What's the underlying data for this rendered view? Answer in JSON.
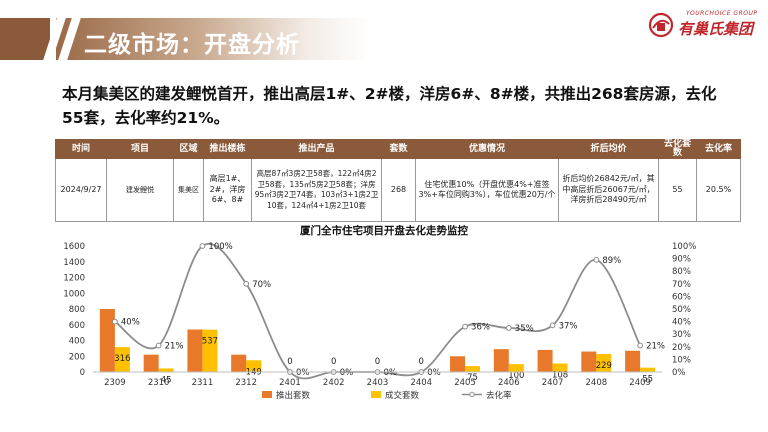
{
  "header": {
    "title": "二级市场：开盘分析",
    "logo_en": "YOURCHOICE GROUP",
    "logo_cn": "有巢氏集团"
  },
  "headline": "本月集美区的建发鲤悦首开，推出高层1#、2#楼，洋房6#、8#楼，共推出268套房源，去化55套，去化率约21%。",
  "table": {
    "headers": [
      "时间",
      "项目",
      "区域",
      "推出楼栋",
      "推出产品",
      "套数",
      "优惠情况",
      "折后均价",
      "去化套数",
      "去化率"
    ],
    "row": {
      "time": "2024/9/27",
      "project": "建发鲤悦",
      "area": "集美区",
      "buildings": "高层1#、2#，洋房6#、8#",
      "products": "高层87㎡3房2卫58套，122㎡4房2卫58套，135㎡5房2卫58套；洋房95㎡3房2卫74套，103㎡3+1房2卫10套，124㎡4+1房2卫10套",
      "units": "268",
      "discount": "住宅优惠10%（开盘优惠4%+准签3%+车位同购3%），车位优惠20万/个",
      "price": "折后均价26842元/㎡，其中高层折后26067元/㎡，洋房折后28490元/㎡",
      "sold": "55",
      "rate": "20.5%"
    }
  },
  "chart_data": {
    "type": "bar",
    "title": "厦门全市住宅项目开盘去化走势监控",
    "categories": [
      "2309",
      "2310",
      "2311",
      "2312",
      "2401",
      "2402",
      "2403",
      "2404",
      "2405",
      "2406",
      "2407",
      "2408",
      "2409"
    ],
    "series": [
      {
        "name": "推出套数",
        "type": "bar",
        "axis": "left",
        "color": "#e8792b",
        "values": [
          800,
          220,
          540,
          220,
          0,
          0,
          0,
          0,
          200,
          290,
          280,
          260,
          270
        ]
      },
      {
        "name": "成交套数",
        "type": "bar",
        "axis": "left",
        "color": "#ffc000",
        "values": [
          316,
          45,
          537,
          149,
          0,
          0,
          0,
          0,
          75,
          100,
          108,
          229,
          55
        ],
        "labels": [
          "316",
          "45",
          "537",
          "149",
          "0",
          "0",
          "0",
          "0",
          "75",
          "100",
          "108",
          "229",
          "55"
        ]
      },
      {
        "name": "去化率",
        "type": "line",
        "axis": "right",
        "color": "#8c8c8c",
        "values": [
          40,
          21,
          100,
          70,
          0,
          0,
          0,
          0,
          36,
          35,
          37,
          89,
          21
        ],
        "labels": [
          "40%",
          "21%",
          "100%",
          "70%",
          "0%",
          "0%",
          "0%",
          "0%",
          "36%",
          "35%",
          "37%",
          "89%",
          "21%"
        ]
      }
    ],
    "ylim": [
      0,
      1600
    ],
    "y2lim": [
      0,
      100
    ],
    "yticks": [
      "0",
      "200",
      "400",
      "600",
      "800",
      "1000",
      "1200",
      "1400",
      "1600"
    ],
    "y2ticks": [
      "0%",
      "10%",
      "20%",
      "30%",
      "40%",
      "50%",
      "60%",
      "70%",
      "80%",
      "90%",
      "100%"
    ],
    "legend_position": "bottom"
  }
}
